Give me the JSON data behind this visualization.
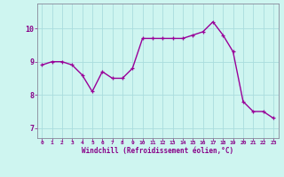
{
  "x": [
    0,
    1,
    2,
    3,
    4,
    5,
    6,
    7,
    8,
    9,
    10,
    11,
    12,
    13,
    14,
    15,
    16,
    17,
    18,
    19,
    20,
    21,
    22,
    23
  ],
  "y": [
    8.9,
    9.0,
    9.0,
    8.9,
    8.6,
    8.1,
    8.7,
    8.5,
    8.5,
    8.8,
    9.7,
    9.7,
    9.7,
    9.7,
    9.7,
    9.8,
    9.9,
    10.2,
    9.8,
    9.3,
    7.8,
    7.5,
    7.5,
    7.3
  ],
  "line_color": "#990099",
  "marker": "+",
  "marker_size": 3.5,
  "marker_linewidth": 0.9,
  "bg_color": "#cef5f0",
  "grid_color": "#aadddd",
  "xlabel": "Windchill (Refroidissement éolien,°C)",
  "xlabel_color": "#880088",
  "tick_color": "#880088",
  "yticks": [
    7,
    8,
    9,
    10
  ],
  "xticks": [
    0,
    1,
    2,
    3,
    4,
    5,
    6,
    7,
    8,
    9,
    10,
    11,
    12,
    13,
    14,
    15,
    16,
    17,
    18,
    19,
    20,
    21,
    22,
    23
  ],
  "ylim": [
    6.7,
    10.75
  ],
  "xlim": [
    -0.5,
    23.5
  ],
  "line_width": 1.0
}
